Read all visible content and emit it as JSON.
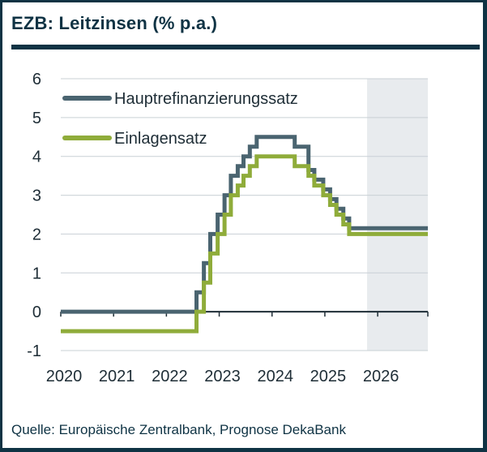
{
  "title": "EZB: Leitzinsen (% p.a.)",
  "source": "Quelle: Europäische Zentralbank, Prognose DekaBank",
  "colors": {
    "frame": "#0f3344",
    "hauptrefi": "#4a6470",
    "einlagen": "#8fac3a",
    "forecast_shade": "#e8ebee",
    "grid": "#c9d0d5",
    "axis": "#1e2d36"
  },
  "chart_data": {
    "type": "line",
    "title": "EZB: Leitzinsen (% p.a.)",
    "xlabel": "",
    "ylabel": "",
    "xlim": [
      2020.0,
      2026.95
    ],
    "ylim": [
      -1,
      6
    ],
    "yticks": [
      -1,
      0,
      1,
      2,
      3,
      4,
      5,
      6
    ],
    "xtick_labels": [
      "2020",
      "2021",
      "2022",
      "2023",
      "2024",
      "2025",
      "2026"
    ],
    "forecast_from": 2025.8,
    "legend_position": "top-left",
    "grid": true,
    "series": [
      {
        "name": "Hauptrefinanzierungssatz",
        "color": "#4a6470",
        "points": [
          [
            2020.0,
            0
          ],
          [
            2022.57,
            0
          ],
          [
            2022.57,
            0.5
          ],
          [
            2022.71,
            0.5
          ],
          [
            2022.71,
            1.25
          ],
          [
            2022.83,
            1.25
          ],
          [
            2022.83,
            2.0
          ],
          [
            2022.97,
            2.0
          ],
          [
            2022.97,
            2.5
          ],
          [
            2023.1,
            2.5
          ],
          [
            2023.1,
            3.0
          ],
          [
            2023.22,
            3.0
          ],
          [
            2023.22,
            3.5
          ],
          [
            2023.35,
            3.5
          ],
          [
            2023.35,
            3.75
          ],
          [
            2023.46,
            3.75
          ],
          [
            2023.46,
            4.0
          ],
          [
            2023.58,
            4.0
          ],
          [
            2023.58,
            4.25
          ],
          [
            2023.71,
            4.25
          ],
          [
            2023.71,
            4.5
          ],
          [
            2024.43,
            4.5
          ],
          [
            2024.43,
            4.25
          ],
          [
            2024.69,
            4.25
          ],
          [
            2024.69,
            3.65
          ],
          [
            2024.8,
            3.65
          ],
          [
            2024.8,
            3.4
          ],
          [
            2024.97,
            3.4
          ],
          [
            2024.97,
            3.15
          ],
          [
            2025.1,
            3.15
          ],
          [
            2025.1,
            2.9
          ],
          [
            2025.22,
            2.9
          ],
          [
            2025.22,
            2.65
          ],
          [
            2025.35,
            2.65
          ],
          [
            2025.35,
            2.4
          ],
          [
            2025.46,
            2.4
          ],
          [
            2025.46,
            2.15
          ],
          [
            2026.95,
            2.15
          ]
        ]
      },
      {
        "name": "Einlagensatz",
        "color": "#8fac3a",
        "points": [
          [
            2020.0,
            -0.5
          ],
          [
            2022.57,
            -0.5
          ],
          [
            2022.57,
            0
          ],
          [
            2022.71,
            0
          ],
          [
            2022.71,
            0.75
          ],
          [
            2022.83,
            0.75
          ],
          [
            2022.83,
            1.5
          ],
          [
            2022.97,
            1.5
          ],
          [
            2022.97,
            2.0
          ],
          [
            2023.1,
            2.0
          ],
          [
            2023.1,
            2.5
          ],
          [
            2023.22,
            2.5
          ],
          [
            2023.22,
            3.0
          ],
          [
            2023.35,
            3.0
          ],
          [
            2023.35,
            3.25
          ],
          [
            2023.46,
            3.25
          ],
          [
            2023.46,
            3.5
          ],
          [
            2023.58,
            3.5
          ],
          [
            2023.58,
            3.75
          ],
          [
            2023.71,
            3.75
          ],
          [
            2023.71,
            4.0
          ],
          [
            2024.43,
            4.0
          ],
          [
            2024.43,
            3.75
          ],
          [
            2024.69,
            3.75
          ],
          [
            2024.69,
            3.5
          ],
          [
            2024.8,
            3.5
          ],
          [
            2024.8,
            3.25
          ],
          [
            2024.97,
            3.25
          ],
          [
            2024.97,
            3.0
          ],
          [
            2025.1,
            3.0
          ],
          [
            2025.1,
            2.75
          ],
          [
            2025.22,
            2.75
          ],
          [
            2025.22,
            2.5
          ],
          [
            2025.35,
            2.5
          ],
          [
            2025.35,
            2.25
          ],
          [
            2025.46,
            2.25
          ],
          [
            2025.46,
            2.0
          ],
          [
            2026.95,
            2.0
          ]
        ]
      }
    ]
  }
}
